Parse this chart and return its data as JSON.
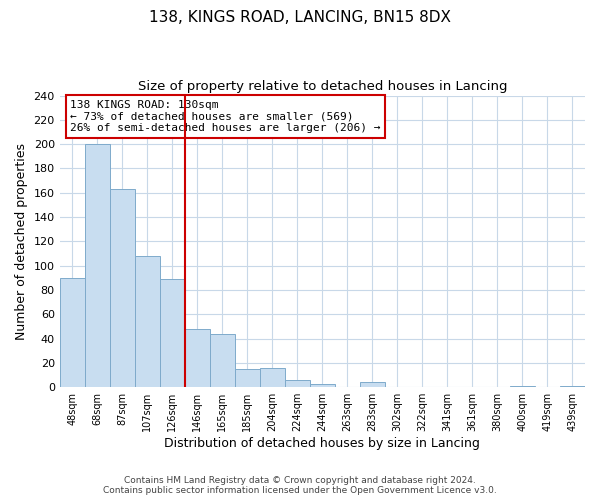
{
  "title": "138, KINGS ROAD, LANCING, BN15 8DX",
  "subtitle": "Size of property relative to detached houses in Lancing",
  "xlabel": "Distribution of detached houses by size in Lancing",
  "ylabel": "Number of detached properties",
  "categories": [
    "48sqm",
    "68sqm",
    "87sqm",
    "107sqm",
    "126sqm",
    "146sqm",
    "165sqm",
    "185sqm",
    "204sqm",
    "224sqm",
    "244sqm",
    "263sqm",
    "283sqm",
    "302sqm",
    "322sqm",
    "341sqm",
    "361sqm",
    "380sqm",
    "400sqm",
    "419sqm",
    "439sqm"
  ],
  "values": [
    90,
    200,
    163,
    108,
    89,
    48,
    44,
    15,
    16,
    6,
    3,
    0,
    4,
    0,
    0,
    0,
    0,
    0,
    1,
    0,
    1
  ],
  "bar_color": "#c8ddf0",
  "bar_edge_color": "#7eaacb",
  "vline_color": "#cc0000",
  "vline_index": 4,
  "ylim": [
    0,
    240
  ],
  "yticks": [
    0,
    20,
    40,
    60,
    80,
    100,
    120,
    140,
    160,
    180,
    200,
    220,
    240
  ],
  "annotation_title": "138 KINGS ROAD: 130sqm",
  "annotation_line1": "← 73% of detached houses are smaller (569)",
  "annotation_line2": "26% of semi-detached houses are larger (206) →",
  "annotation_box_color": "#ffffff",
  "annotation_box_edge": "#cc0000",
  "footer_line1": "Contains HM Land Registry data © Crown copyright and database right 2024.",
  "footer_line2": "Contains public sector information licensed under the Open Government Licence v3.0.",
  "bg_color": "#ffffff",
  "grid_color": "#c8d8e8"
}
